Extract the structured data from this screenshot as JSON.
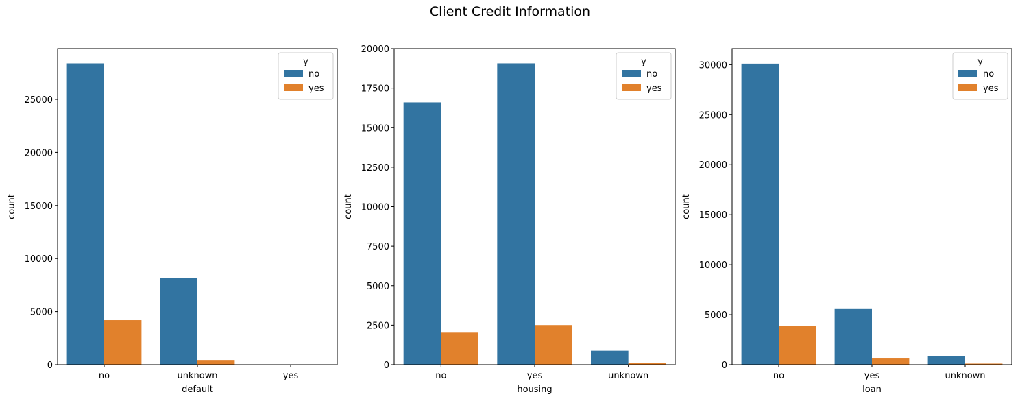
{
  "title": "Client Credit Information",
  "colors": {
    "no": "#3274a1",
    "yes": "#e1812c"
  },
  "chart_data": [
    {
      "type": "bar",
      "title": "",
      "xlabel": "default",
      "ylabel": "count",
      "categories": [
        "no",
        "unknown",
        "yes"
      ],
      "ylim": [
        0,
        29780
      ],
      "yticks": [
        0,
        5000,
        10000,
        15000,
        20000,
        25000
      ],
      "legend": {
        "title": "y",
        "placement": "top-right"
      },
      "series": [
        {
          "name": "no",
          "values": [
            28391,
            8154,
            3
          ]
        },
        {
          "name": "yes",
          "values": [
            4197,
            443,
            0
          ]
        }
      ]
    },
    {
      "type": "bar",
      "title": "",
      "xlabel": "housing",
      "ylabel": "count",
      "categories": [
        "no",
        "yes",
        "unknown"
      ],
      "ylim": [
        0,
        20000
      ],
      "yticks": [
        0,
        2500,
        5000,
        7500,
        10000,
        12500,
        15000,
        17500,
        20000
      ],
      "legend": {
        "title": "y",
        "placement": "top-right"
      },
      "series": [
        {
          "name": "no",
          "values": [
            16596,
            19069,
            883
          ]
        },
        {
          "name": "yes",
          "values": [
            2026,
            2507,
            107
          ]
        }
      ]
    },
    {
      "type": "bar",
      "title": "",
      "xlabel": "loan",
      "ylabel": "count",
      "categories": [
        "no",
        "yes",
        "unknown"
      ],
      "ylim": [
        0,
        31600
      ],
      "yticks": [
        0,
        5000,
        10000,
        15000,
        20000,
        25000,
        30000
      ],
      "legend": {
        "title": "y",
        "placement": "top-right"
      },
      "series": [
        {
          "name": "no",
          "values": [
            30100,
            5565,
            883
          ]
        },
        {
          "name": "yes",
          "values": [
            3850,
            683,
            107
          ]
        }
      ]
    }
  ]
}
